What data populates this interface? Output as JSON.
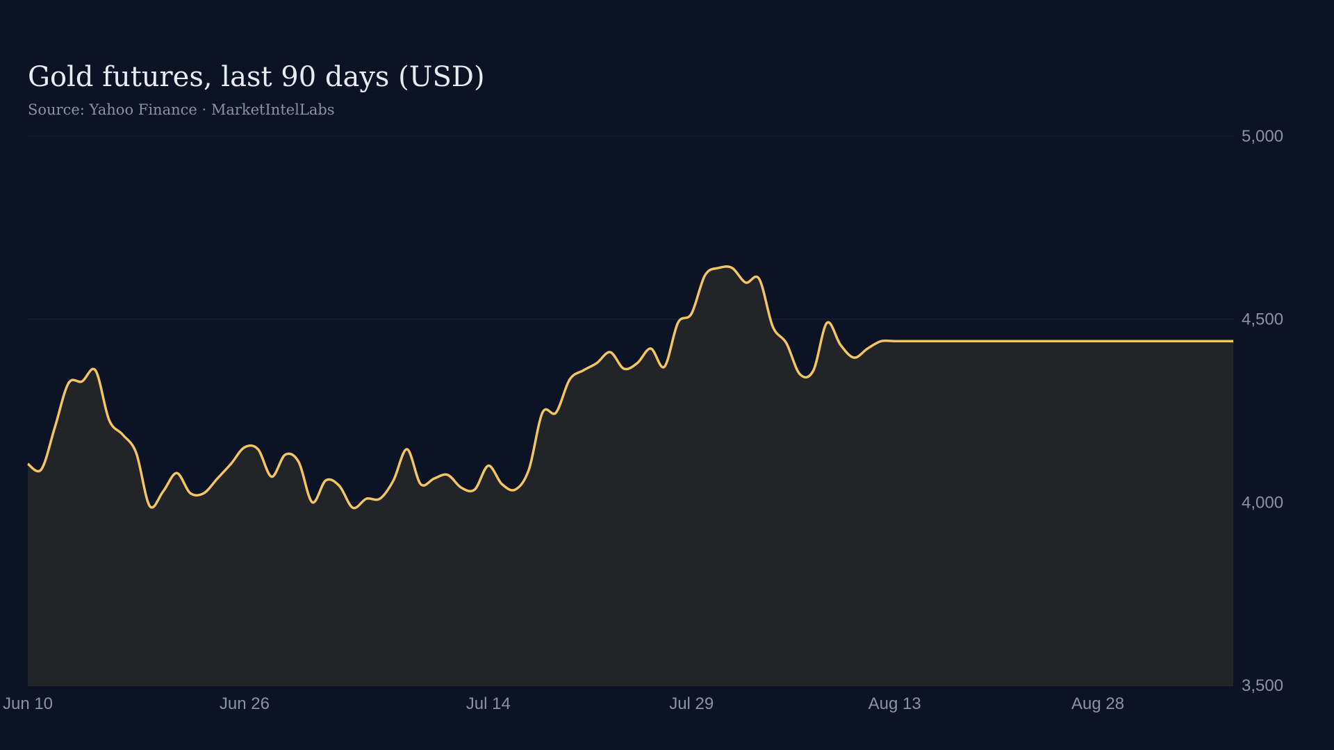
{
  "chart_data": {
    "type": "area",
    "title": "Gold futures, last 90 days (USD)",
    "subtitle": "Source: Yahoo Finance · MarketIntelLabs",
    "xlabel": "",
    "ylabel": "",
    "ylim": [
      3500,
      5000
    ],
    "grid": true,
    "legend": "none",
    "y_ticks": [
      {
        "value": 5000,
        "label": "5,000"
      },
      {
        "value": 4500,
        "label": "4,500"
      },
      {
        "value": 4000,
        "label": "4,000"
      },
      {
        "value": 3500,
        "label": "3,500"
      }
    ],
    "x_ticks": [
      {
        "value": "2025-06-10",
        "label": "Jun 10"
      },
      {
        "value": "2025-06-26",
        "label": "Jun 26"
      },
      {
        "value": "2025-07-14",
        "label": "Jul 14"
      },
      {
        "value": "2025-07-29",
        "label": "Jul 29"
      },
      {
        "value": "2025-08-13",
        "label": "Aug 13"
      },
      {
        "value": "2025-08-28",
        "label": "Aug 28"
      }
    ],
    "x_range": [
      "2025-06-10",
      "2025-09-07"
    ],
    "series": [
      {
        "color": "#f4c563",
        "fill": "#222428",
        "x": [
          "2025-06-10",
          "2025-06-11",
          "2025-06-12",
          "2025-06-13",
          "2025-06-14",
          "2025-06-15",
          "2025-06-16",
          "2025-06-17",
          "2025-06-18",
          "2025-06-19",
          "2025-06-20",
          "2025-06-21",
          "2025-06-22",
          "2025-06-23",
          "2025-06-24",
          "2025-06-25",
          "2025-06-26",
          "2025-06-27",
          "2025-06-28",
          "2025-06-29",
          "2025-06-30",
          "2025-07-01",
          "2025-07-02",
          "2025-07-03",
          "2025-07-04",
          "2025-07-05",
          "2025-07-06",
          "2025-07-07",
          "2025-07-08",
          "2025-07-09",
          "2025-07-10",
          "2025-07-11",
          "2025-07-12",
          "2025-07-13",
          "2025-07-14",
          "2025-07-15",
          "2025-07-16",
          "2025-07-17",
          "2025-07-18",
          "2025-07-19",
          "2025-07-20",
          "2025-07-21",
          "2025-07-22",
          "2025-07-23",
          "2025-07-24",
          "2025-07-25",
          "2025-07-26",
          "2025-07-27",
          "2025-07-28",
          "2025-07-29",
          "2025-07-30",
          "2025-07-31",
          "2025-08-01",
          "2025-08-02",
          "2025-08-03",
          "2025-08-04",
          "2025-08-05",
          "2025-08-06",
          "2025-08-07",
          "2025-08-08",
          "2025-08-09",
          "2025-08-10",
          "2025-08-11",
          "2025-08-12",
          "2025-08-13",
          "2025-08-14",
          "2025-08-15",
          "2025-08-16",
          "2025-08-17",
          "2025-08-18",
          "2025-08-19",
          "2025-08-20",
          "2025-08-21",
          "2025-08-22",
          "2025-08-23",
          "2025-08-24",
          "2025-08-25",
          "2025-08-26",
          "2025-08-27",
          "2025-08-28",
          "2025-08-29",
          "2025-08-30",
          "2025-08-31",
          "2025-09-01",
          "2025-09-02",
          "2025-09-03",
          "2025-09-04",
          "2025-09-05",
          "2025-09-06",
          "2025-09-07"
        ],
        "y": [
          4105,
          4090,
          4205,
          4325,
          4330,
          4360,
          4225,
          4185,
          4135,
          3990,
          4030,
          4080,
          4025,
          4025,
          4065,
          4105,
          4150,
          4145,
          4070,
          4130,
          4110,
          4000,
          4060,
          4045,
          3985,
          4010,
          4010,
          4060,
          4145,
          4050,
          4065,
          4075,
          4040,
          4035,
          4100,
          4050,
          4035,
          4090,
          4245,
          4245,
          4335,
          4360,
          4380,
          4410,
          4365,
          4380,
          4420,
          4370,
          4490,
          4515,
          4620,
          4640,
          4640,
          4600,
          4610,
          4480,
          4435,
          4350,
          4360,
          4490,
          4430,
          4395,
          4420,
          4440,
          4440,
          4440,
          4440,
          4440,
          4440,
          4440,
          4440,
          4440,
          4440,
          4440,
          4440,
          4440,
          4440,
          4440,
          4440,
          4440,
          4440,
          4440,
          4440,
          4440,
          4440,
          4440,
          4440,
          4440,
          4440,
          4440
        ]
      }
    ]
  }
}
